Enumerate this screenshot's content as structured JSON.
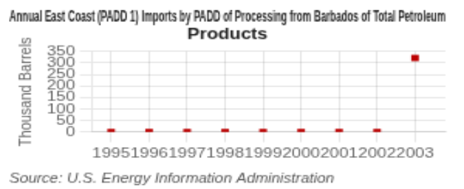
{
  "chart_data": {
    "type": "scatter",
    "title": "Annual East Coast (PADD 1) Imports by PADD of Processing from Barbados of Total Petroleum\nProducts",
    "ylabel": "Thousand Barrels",
    "annotations": [
      "Source: U.S. Energy Information Administration"
    ],
    "x": [
      1995,
      1996,
      1997,
      1998,
      1999,
      2000,
      2001,
      2002,
      2003
    ],
    "values": [
      0,
      0,
      0,
      0,
      0,
      0,
      0,
      0,
      322
    ],
    "color": "#bb0000",
    "marker": "square",
    "xlim": [
      1994.5,
      2003.8
    ],
    "xticks": [
      1995,
      1996,
      1997,
      1998,
      1999,
      2000,
      2001,
      2002,
      2003
    ],
    "ylim": [
      0,
      350
    ],
    "yticks": [
      0,
      50,
      100,
      150,
      200,
      250,
      300,
      350
    ],
    "grid": true
  }
}
